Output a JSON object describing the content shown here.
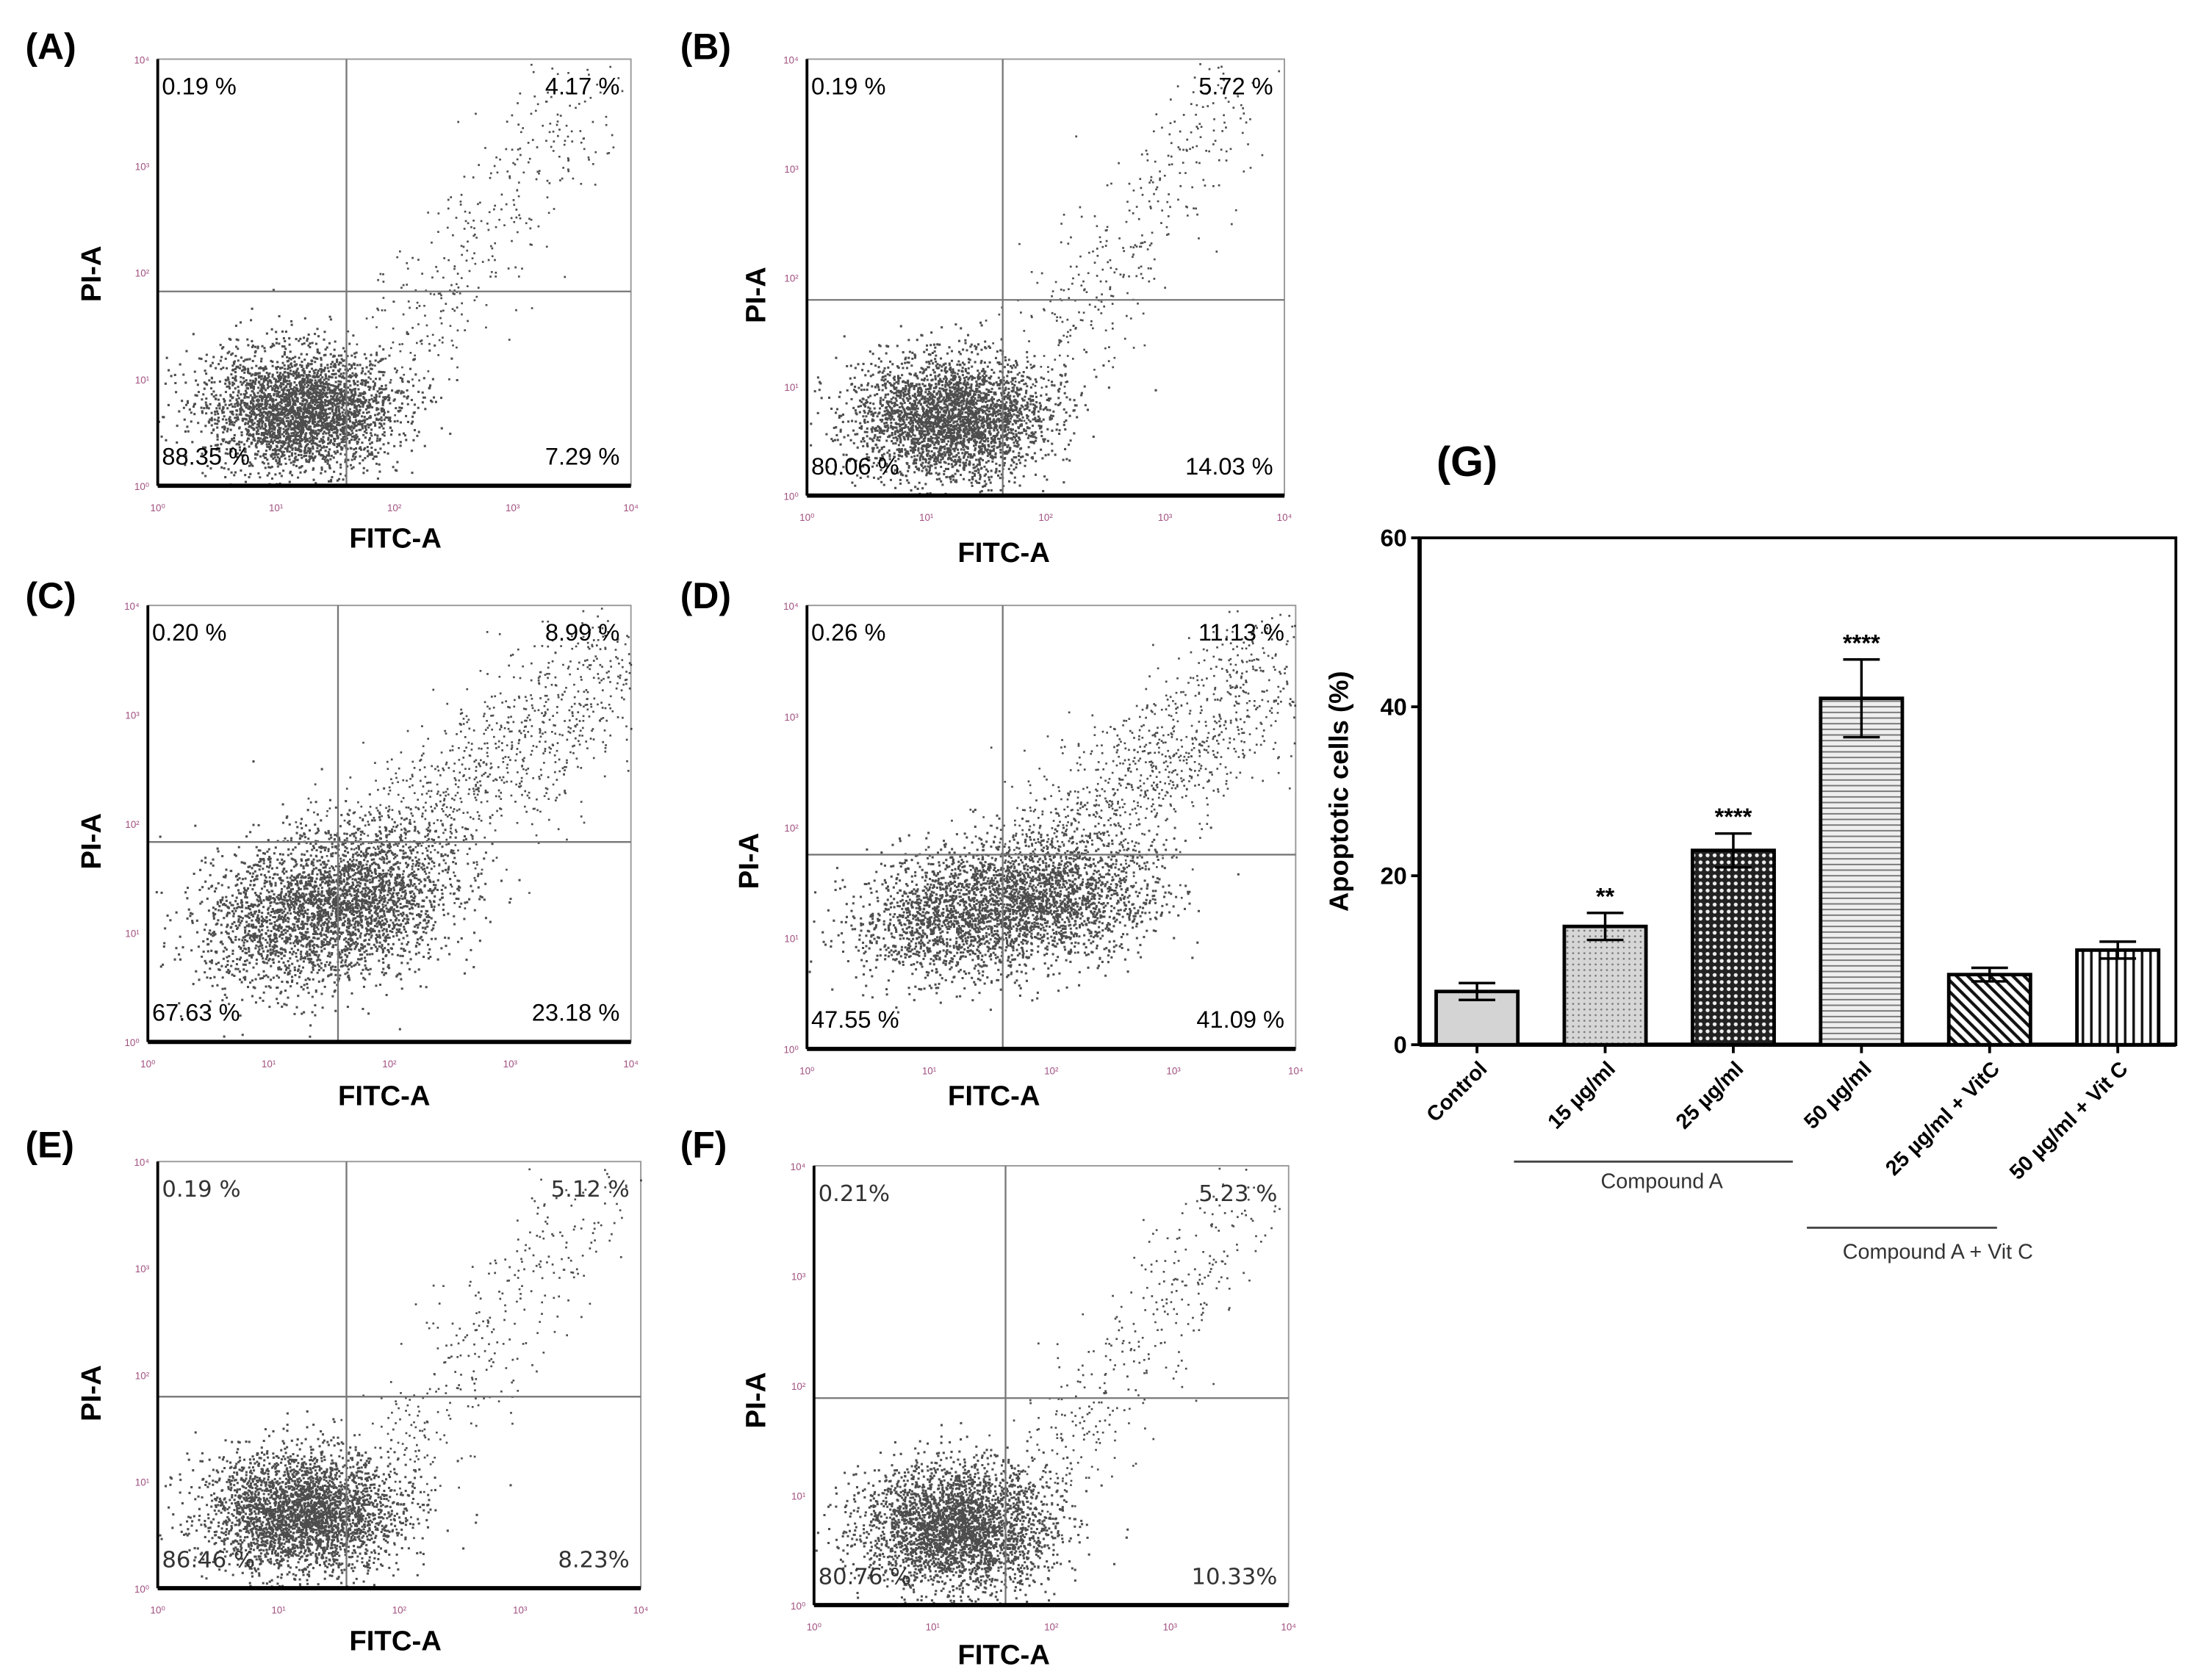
{
  "flow_panels": [
    {
      "letter": "(A)",
      "xlabel": "FITC-A",
      "ylabel": "PI-A",
      "ul": "0.19 %",
      "ur": "4.17 %",
      "ll": "88.35 %",
      "lr": "7.29 %"
    },
    {
      "letter": "(B)",
      "xlabel": "FITC-A",
      "ylabel": "PI-A",
      "ul": "0.19 %",
      "ur": "5.72 %",
      "ll": "80.06 %",
      "lr": "14.03 %"
    },
    {
      "letter": "(C)",
      "xlabel": "FITC-A",
      "ylabel": "PI-A",
      "ul": "0.20 %",
      "ur": "8.99 %",
      "ll": "67.63 %",
      "lr": "23.18 %"
    },
    {
      "letter": "(D)",
      "xlabel": "FITC-A",
      "ylabel": "PI-A",
      "ul": "0.26 %",
      "ur": "11.13 %",
      "ll": "47.55 %",
      "lr": "41.09 %"
    },
    {
      "letter": "(E)",
      "xlabel": "FITC-A",
      "ylabel": "PI-A",
      "ul": "0.19 %",
      "ur": "5.12 %",
      "ll": "86.46 %",
      "lr": "8.23%"
    },
    {
      "letter": "(F)",
      "xlabel": "FITC-A",
      "ylabel": "PI-A",
      "ul": "0.21%",
      "ur": "5.23 %",
      "ll": "80.76 %",
      "lr": "10.33%"
    }
  ],
  "flow_axis_ticks": [
    "10⁰",
    "10¹",
    "10²",
    "10³",
    "10⁴"
  ],
  "chart_data": {
    "type": "bar",
    "panel_letter": "(G)",
    "title": "",
    "xlabel": "",
    "ylabel": "Apoptotic cells (%)",
    "ylim": [
      0,
      60
    ],
    "yticks": [
      0,
      20,
      40,
      60
    ],
    "grid": false,
    "categories": [
      "Control",
      "15 µg/ml",
      "25 µg/ml",
      "50 µg/ml",
      "25 µg/ml + VitC",
      "50 µg/ml + Vit C"
    ],
    "values": [
      6.3,
      14.0,
      23.0,
      41.0,
      8.3,
      11.2
    ],
    "errors": [
      1.0,
      1.6,
      2.0,
      4.6,
      0.8,
      1.0
    ],
    "significance": [
      "",
      "**",
      "****",
      "****",
      "",
      ""
    ],
    "patterns": [
      "solid-light-gray",
      "dots",
      "checker",
      "horizontal-lines",
      "diagonal-lines",
      "vertical-lines"
    ],
    "groups": [
      {
        "label": "Compound A",
        "members": [
          1,
          2,
          3
        ]
      },
      {
        "label": "Compound A + Vit C",
        "members": [
          4,
          5
        ]
      }
    ]
  }
}
